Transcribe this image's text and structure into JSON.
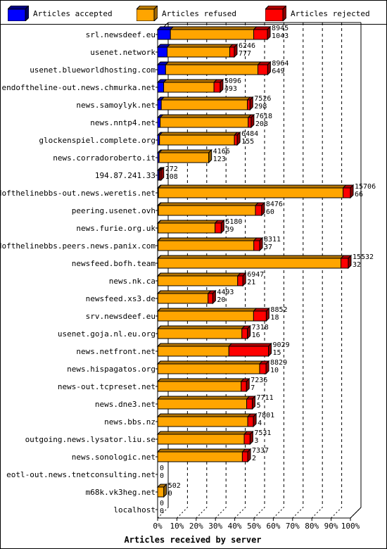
{
  "legend": [
    {
      "label": "Articles accepted",
      "color": "#0000ff"
    },
    {
      "label": "Articles refused",
      "color": "#ffa500"
    },
    {
      "label": "Articles rejected",
      "color": "#ff0000"
    }
  ],
  "chart_data": {
    "type": "bar",
    "orientation": "horizontal",
    "stacked": true,
    "xlabel": "Articles received by server",
    "x_ticks": [
      "0%",
      "10%",
      "20%",
      "30%",
      "40%",
      "50%",
      "60%",
      "70%",
      "80%",
      "90%",
      "100%"
    ],
    "xlim": [
      0,
      100
    ],
    "series_names": [
      "Articles accepted",
      "Articles refused",
      "Articles rejected"
    ],
    "rows": [
      {
        "server": "srl.newsdeef.eu",
        "label_top": "8945",
        "label_bottom": "1043",
        "accepted": 1043,
        "refused": 6785,
        "rejected": 1117
      },
      {
        "server": "usenet.network",
        "label_top": "6246",
        "label_bottom": "777",
        "accepted": 777,
        "refused": 5100,
        "rejected": 369
      },
      {
        "server": "usenet.blueworldhosting.com",
        "label_top": "8964",
        "label_bottom": "649",
        "accepted": 649,
        "refused": 7520,
        "rejected": 795
      },
      {
        "server": "endoftheline-out.news.chmurka.net",
        "label_top": "5096",
        "label_bottom": "493",
        "accepted": 493,
        "refused": 4100,
        "rejected": 503
      },
      {
        "server": "news.samoylyk.net",
        "label_top": "7526",
        "label_bottom": "298",
        "accepted": 298,
        "refused": 7010,
        "rejected": 218
      },
      {
        "server": "news.nntp4.net",
        "label_top": "7618",
        "label_bottom": "208",
        "accepted": 208,
        "refused": 7170,
        "rejected": 240
      },
      {
        "server": "glockenspiel.complete.org",
        "label_top": "6484",
        "label_bottom": "155",
        "accepted": 155,
        "refused": 6100,
        "rejected": 229
      },
      {
        "server": "news.corradoroberto.it",
        "label_top": "4166",
        "label_bottom": "123",
        "accepted": 123,
        "refused": 4043,
        "rejected": 0
      },
      {
        "server": "194.87.241.33",
        "label_top": "272",
        "label_bottom": "108",
        "accepted": 108,
        "refused": 50,
        "rejected": 114
      },
      {
        "server": "endofthelinebbs-out.news.weretis.net",
        "label_top": "15706",
        "label_bottom": "66",
        "accepted": 66,
        "refused": 15040,
        "rejected": 600
      },
      {
        "server": "peering.usenet.ovh",
        "label_top": "8476",
        "label_bottom": "60",
        "accepted": 60,
        "refused": 7910,
        "rejected": 506
      },
      {
        "server": "news.furie.org.uk",
        "label_top": "5180",
        "label_bottom": "39",
        "accepted": 39,
        "refused": 4640,
        "rejected": 501
      },
      {
        "server": "endofthelinebbs.peers.news.panix.com",
        "label_top": "8311",
        "label_bottom": "37",
        "accepted": 37,
        "refused": 7800,
        "rejected": 474
      },
      {
        "server": "newsfeed.bofh.team",
        "label_top": "15532",
        "label_bottom": "32",
        "accepted": 32,
        "refused": 14900,
        "rejected": 600
      },
      {
        "server": "news.nk.ca",
        "label_top": "6947",
        "label_bottom": "21",
        "accepted": 21,
        "refused": 6500,
        "rejected": 426
      },
      {
        "server": "newsfeed.xs3.de",
        "label_top": "4493",
        "label_bottom": "20",
        "accepted": 20,
        "refused": 4090,
        "rejected": 383
      },
      {
        "server": "srv.newsdeef.eu",
        "label_top": "8852",
        "label_bottom": "18",
        "accepted": 18,
        "refused": 7800,
        "rejected": 1034
      },
      {
        "server": "usenet.goja.nl.eu.org",
        "label_top": "7318",
        "label_bottom": "16",
        "accepted": 16,
        "refused": 6850,
        "rejected": 452
      },
      {
        "server": "news.netfront.net",
        "label_top": "9029",
        "label_bottom": "15",
        "accepted": 15,
        "refused": 5790,
        "rejected": 3224
      },
      {
        "server": "news.hispagatos.org",
        "label_top": "8829",
        "label_bottom": "10",
        "accepted": 10,
        "refused": 8300,
        "rejected": 519
      },
      {
        "server": "news-out.tcpreset.net",
        "label_top": "7236",
        "label_bottom": "7",
        "accepted": 7,
        "refused": 6800,
        "rejected": 429
      },
      {
        "server": "news.dne3.net",
        "label_top": "7711",
        "label_bottom": "5",
        "accepted": 5,
        "refused": 7250,
        "rejected": 456
      },
      {
        "server": "news.bbs.nz",
        "label_top": "7801",
        "label_bottom": "4",
        "accepted": 4,
        "refused": 7340,
        "rejected": 457
      },
      {
        "server": "outgoing.news.lysator.liu.se",
        "label_top": "7531",
        "label_bottom": "3",
        "accepted": 3,
        "refused": 7050,
        "rejected": 478
      },
      {
        "server": "news.sonologic.net",
        "label_top": "7337",
        "label_bottom": "2",
        "accepted": 2,
        "refused": 6900,
        "rejected": 435
      },
      {
        "server": "eotl-out.news.tnetconsulting.net",
        "label_top": "0",
        "label_bottom": "0",
        "accepted": 0,
        "refused": 0,
        "rejected": 0
      },
      {
        "server": "m68k.vk3heg.net",
        "label_top": "502",
        "label_bottom": "0",
        "accepted": 0,
        "refused": 502,
        "rejected": 0
      },
      {
        "server": "localhost",
        "label_top": "0",
        "label_bottom": "0",
        "accepted": 0,
        "refused": 0,
        "rejected": 0
      }
    ]
  }
}
